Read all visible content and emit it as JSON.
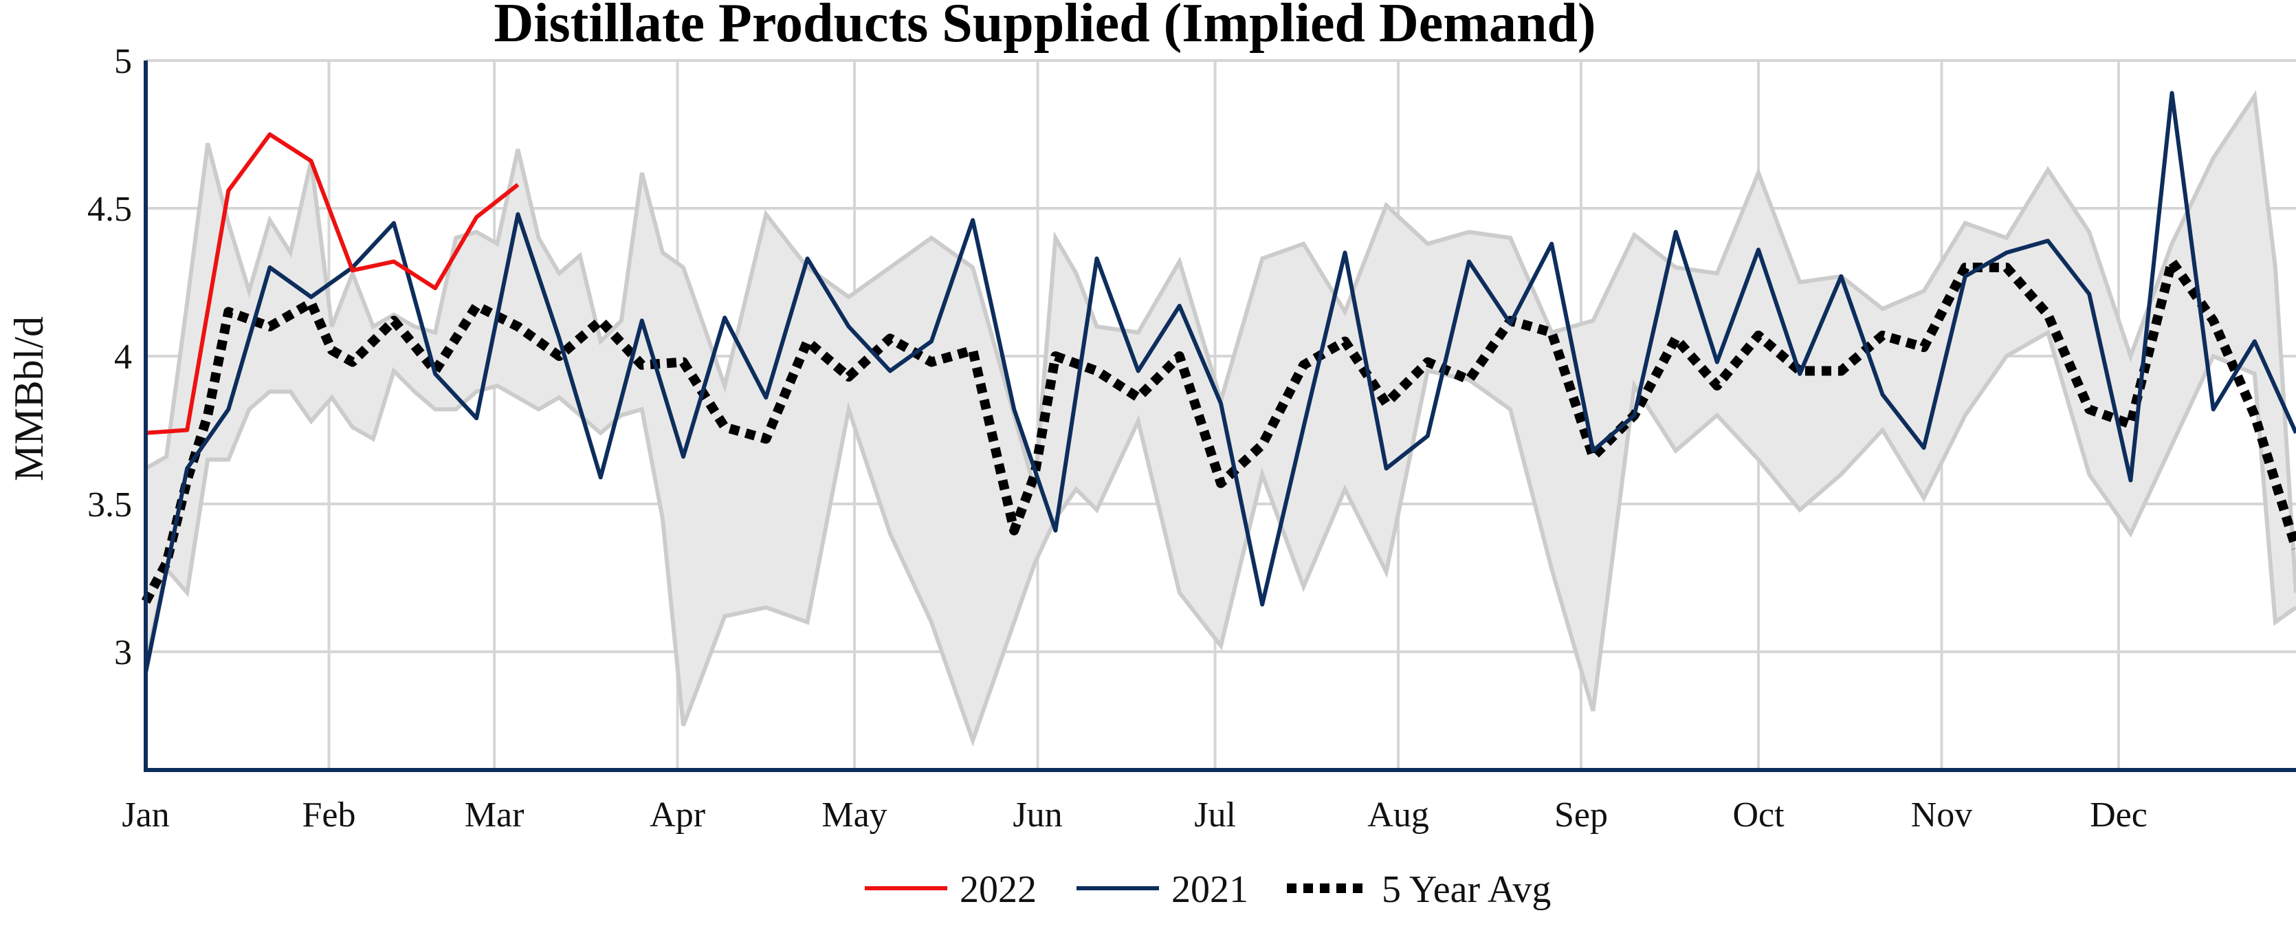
{
  "chart_data": {
    "type": "line",
    "title": "Distillate Products Supplied (Implied Demand)",
    "xlabel": "",
    "ylabel": "MMBbl/d",
    "ylim": [
      2.6,
      5.0
    ],
    "xlim_weeks": [
      0,
      52
    ],
    "grid": true,
    "legend_position": "bottom",
    "y_ticks": [
      "3",
      "3.5",
      "4",
      "4.5",
      "5"
    ],
    "month_ticks": [
      {
        "label": "Jan",
        "week": 0
      },
      {
        "label": "Feb",
        "week": 4.43
      },
      {
        "label": "Mar",
        "week": 8.43
      },
      {
        "label": "Apr",
        "week": 12.86
      },
      {
        "label": "May",
        "week": 17.14
      },
      {
        "label": "Jun",
        "week": 21.57
      },
      {
        "label": "Jul",
        "week": 25.86
      },
      {
        "label": "Aug",
        "week": 30.29
      },
      {
        "label": "Sep",
        "week": 34.71
      },
      {
        "label": "Oct",
        "week": 39.0
      },
      {
        "label": "Nov",
        "week": 43.43
      },
      {
        "label": "Dec",
        "week": 47.71
      }
    ],
    "range_band": {
      "color": "#e8e8e8",
      "edge_color": "#cccccc",
      "week": [
        0,
        0.5,
        1,
        1.5,
        2,
        2.5,
        3,
        3.5,
        4,
        4.5,
        5,
        5.5,
        6,
        6.5,
        7,
        7.5,
        8,
        8.5,
        9,
        9.5,
        10,
        10.5,
        11,
        11.5,
        12,
        12.5,
        13,
        14,
        15,
        16,
        17,
        18,
        19,
        20,
        21,
        21.5,
        22,
        22.5,
        23,
        24,
        25,
        26,
        27,
        28,
        29,
        30,
        31,
        32,
        33,
        34,
        35,
        36,
        37,
        38,
        39,
        40,
        41,
        42,
        43,
        44,
        45,
        46,
        47,
        48,
        49,
        50,
        51,
        51.5,
        52
      ],
      "upper": [
        3.62,
        3.66,
        4.18,
        4.72,
        4.45,
        4.22,
        4.46,
        4.35,
        4.66,
        4.1,
        4.28,
        4.1,
        4.14,
        4.1,
        4.08,
        4.4,
        4.42,
        4.38,
        4.7,
        4.4,
        4.28,
        4.34,
        4.05,
        4.12,
        4.62,
        4.35,
        4.3,
        3.9,
        4.48,
        4.3,
        4.2,
        4.3,
        4.4,
        4.3,
        3.8,
        3.55,
        4.4,
        4.28,
        4.1,
        4.08,
        4.32,
        3.85,
        4.33,
        4.38,
        4.15,
        4.51,
        4.38,
        4.42,
        4.4,
        4.08,
        4.12,
        4.41,
        4.3,
        4.28,
        4.62,
        4.25,
        4.27,
        4.16,
        4.22,
        4.45,
        4.4,
        4.63,
        4.42,
        4.0,
        4.38,
        4.67,
        4.88,
        4.3,
        3.2
      ],
      "lower": [
        2.96,
        3.28,
        3.2,
        3.65,
        3.65,
        3.82,
        3.88,
        3.88,
        3.78,
        3.86,
        3.76,
        3.72,
        3.95,
        3.88,
        3.82,
        3.82,
        3.88,
        3.9,
        3.86,
        3.82,
        3.86,
        3.8,
        3.74,
        3.8,
        3.82,
        3.45,
        2.75,
        3.12,
        3.15,
        3.1,
        3.82,
        3.4,
        3.1,
        2.7,
        3.1,
        3.3,
        3.45,
        3.55,
        3.48,
        3.78,
        3.2,
        3.02,
        3.6,
        3.22,
        3.55,
        3.27,
        3.95,
        3.92,
        3.82,
        3.28,
        2.8,
        3.9,
        3.68,
        3.8,
        3.65,
        3.48,
        3.6,
        3.75,
        3.52,
        3.8,
        4.0,
        4.08,
        3.6,
        3.4,
        3.7,
        4.0,
        3.94,
        3.1,
        3.15
      ]
    },
    "series": [
      {
        "name": "2022",
        "color": "#ee1111",
        "dash": "solid",
        "x": [
          0,
          1,
          2,
          3,
          4,
          5,
          6,
          7,
          8,
          9,
          10,
          11
        ],
        "values": [
          3.74,
          3.75,
          4.56,
          4.75,
          4.66,
          4.29,
          4.32,
          4.23,
          4.47,
          4.58,
          null,
          null
        ]
      },
      {
        "name": "2021",
        "color": "#0d2d5c",
        "dash": "solid",
        "x": [
          0,
          1,
          2,
          3,
          4,
          5,
          6,
          7,
          8,
          9,
          10,
          11,
          12,
          13,
          14,
          15,
          16,
          17,
          18,
          19,
          20,
          21,
          22,
          23,
          24,
          25,
          26,
          27,
          28,
          29,
          30,
          31,
          32,
          33,
          34,
          35,
          36,
          37,
          38,
          39,
          40,
          41,
          42,
          43,
          44,
          45,
          46,
          47,
          48,
          49,
          50,
          51,
          52
        ],
        "values": [
          2.93,
          3.62,
          3.82,
          4.3,
          4.2,
          4.3,
          4.45,
          3.94,
          3.79,
          4.48,
          4.06,
          3.59,
          4.12,
          3.66,
          4.13,
          3.86,
          4.33,
          4.1,
          3.95,
          4.05,
          4.46,
          3.82,
          3.41,
          4.33,
          3.95,
          4.17,
          3.84,
          3.16,
          3.76,
          4.35,
          3.62,
          3.73,
          4.32,
          4.11,
          4.38,
          3.68,
          3.8,
          4.42,
          3.98,
          4.36,
          3.94,
          4.27,
          3.87,
          3.69,
          4.27,
          4.35,
          4.39,
          4.21,
          3.58,
          4.89,
          3.82,
          4.05,
          3.74
        ]
      },
      {
        "name": "5 Year Avg",
        "color": "#000000",
        "dash": "dotted",
        "x": [
          0,
          0.5,
          1,
          1.5,
          2,
          3,
          4,
          4.5,
          5,
          6,
          7,
          8,
          9,
          10,
          11,
          12,
          13,
          14,
          15,
          16,
          17,
          18,
          19,
          20,
          21,
          21.5,
          22,
          23,
          24,
          25,
          26,
          27,
          28,
          29,
          30,
          31,
          32,
          33,
          34,
          35,
          36,
          37,
          38,
          39,
          40,
          41,
          42,
          43,
          44,
          45,
          46,
          47,
          48,
          49,
          50,
          51,
          52
        ],
        "values": [
          3.17,
          3.3,
          3.58,
          3.8,
          4.15,
          4.1,
          4.18,
          4.02,
          3.98,
          4.12,
          3.95,
          4.17,
          4.1,
          4.0,
          4.12,
          3.97,
          3.98,
          3.76,
          3.72,
          4.05,
          3.93,
          4.06,
          3.98,
          4.02,
          3.41,
          3.6,
          4.0,
          3.95,
          3.86,
          4.0,
          3.57,
          3.7,
          3.97,
          4.05,
          3.84,
          3.98,
          3.92,
          4.12,
          4.08,
          3.66,
          3.8,
          4.06,
          3.9,
          4.07,
          3.95,
          3.95,
          4.07,
          4.03,
          4.3,
          4.3,
          4.14,
          3.82,
          3.77,
          4.32,
          4.12,
          3.8,
          3.35
        ]
      }
    ]
  }
}
